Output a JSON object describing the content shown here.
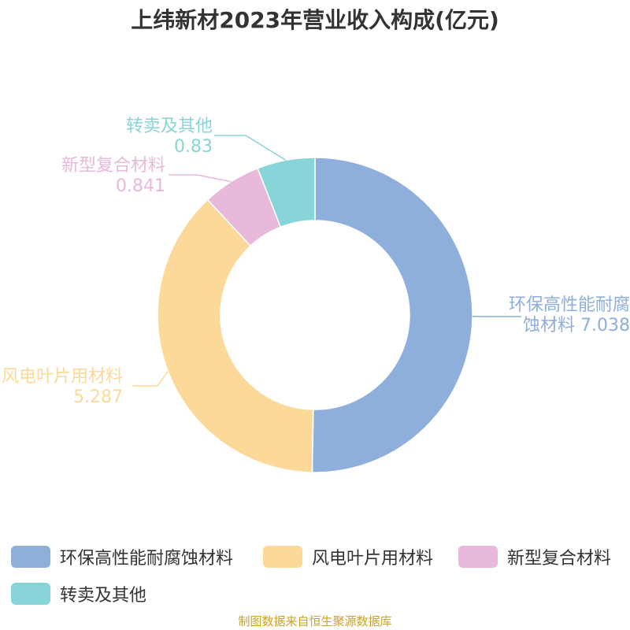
{
  "chart_data": {
    "type": "pie",
    "title": "上纬新材2023年营业收入构成(亿元)",
    "donut": true,
    "legend_position": "bottom",
    "slices": [
      {
        "label": "环保高性能耐腐蚀材料",
        "label_line1": "环保高性能耐腐",
        "label_line2": "蚀材料 7.038",
        "value": 7.038,
        "value_text": "7.038",
        "color": "#8eaedb"
      },
      {
        "label": "风电叶片用材料",
        "label_line1": "风电叶片用材料",
        "label_line2": "5.287",
        "value": 5.287,
        "value_text": "5.287",
        "color": "#fdd999"
      },
      {
        "label": "新型复合材料",
        "label_line1": "新型复合材料",
        "label_line2": "0.841",
        "value": 0.841,
        "value_text": "0.841",
        "color": "#e8b9da"
      },
      {
        "label": "转卖及其他",
        "label_line1": "转卖及其他",
        "label_line2": "0.83",
        "value": 0.83,
        "value_text": "0.83",
        "color": "#87d5d9"
      }
    ]
  },
  "source": "制图数据来自恒生聚源数据库"
}
